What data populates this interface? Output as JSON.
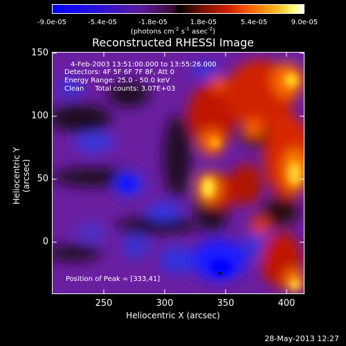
{
  "colorbar": {
    "ticks": [
      "-9.0e-05",
      "-5.4e-05",
      "-1.8e-05",
      "1.8e-05",
      "5.4e-05",
      "9.0e-05"
    ],
    "unit_prefix": "(photons cm",
    "unit_exp1": "-2",
    "unit_mid": " s",
    "unit_exp2": "-1",
    "unit_mid2": " asec",
    "unit_exp3": "-2",
    "unit_suffix": ")"
  },
  "title": "Reconstructed RHESSI Image",
  "info": {
    "time": "4-Feb-2003 13:51:00.000 to 13:55:26.000",
    "detectors": "Detectors: 4F 5F 6F 7F 8F, Att 0",
    "energy": "Energy Range: 25.0 - 50.0 keV",
    "clean": "Clean     Total counts: 3.07E+03",
    "peak": "Position of Peak = [333,41]"
  },
  "axes": {
    "ylabel": "Heliocentric Y (arcsec)",
    "xlabel": "Heliocentric X (arcsec)",
    "yticks": [
      "150",
      "100",
      "50",
      "0"
    ],
    "xticks": [
      "250",
      "300",
      "350",
      "400"
    ]
  },
  "timestamp": "28-May-2013 12:27"
}
